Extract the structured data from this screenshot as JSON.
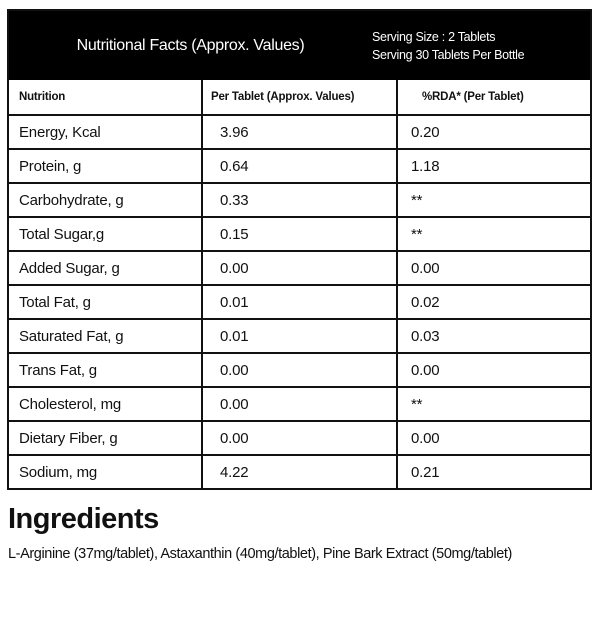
{
  "header": {
    "title": "Nutritional Facts (Approx. Values)",
    "serving_size": "Serving Size : 2 Tablets",
    "serving_count": "Serving 30 Tablets Per Bottle"
  },
  "columns": [
    "Nutrition",
    "Per Tablet (Approx. Values)",
    "%RDA* (Per Tablet)"
  ],
  "rows": [
    [
      "Energy, Kcal",
      "3.96",
      "0.20"
    ],
    [
      "Protein, g",
      "0.64",
      "1.18"
    ],
    [
      "Carbohydrate, g",
      "0.33",
      "**"
    ],
    [
      "Total Sugar,g",
      "0.15",
      "**"
    ],
    [
      "Added Sugar, g",
      "0.00",
      "0.00"
    ],
    [
      "Total Fat, g",
      "0.01",
      "0.02"
    ],
    [
      "Saturated Fat, g",
      "0.01",
      "0.03"
    ],
    [
      "Trans Fat, g",
      "0.00",
      "0.00"
    ],
    [
      "Cholesterol, mg",
      "0.00",
      "**"
    ],
    [
      "Dietary Fiber, g",
      "0.00",
      "0.00"
    ],
    [
      "Sodium, mg",
      "4.22",
      "0.21"
    ]
  ],
  "ingredients": {
    "heading": "Ingredients",
    "text": "L-Arginine (37mg/tablet), Astaxanthin (40mg/tablet),  Pine Bark Extract (50mg/tablet)"
  }
}
